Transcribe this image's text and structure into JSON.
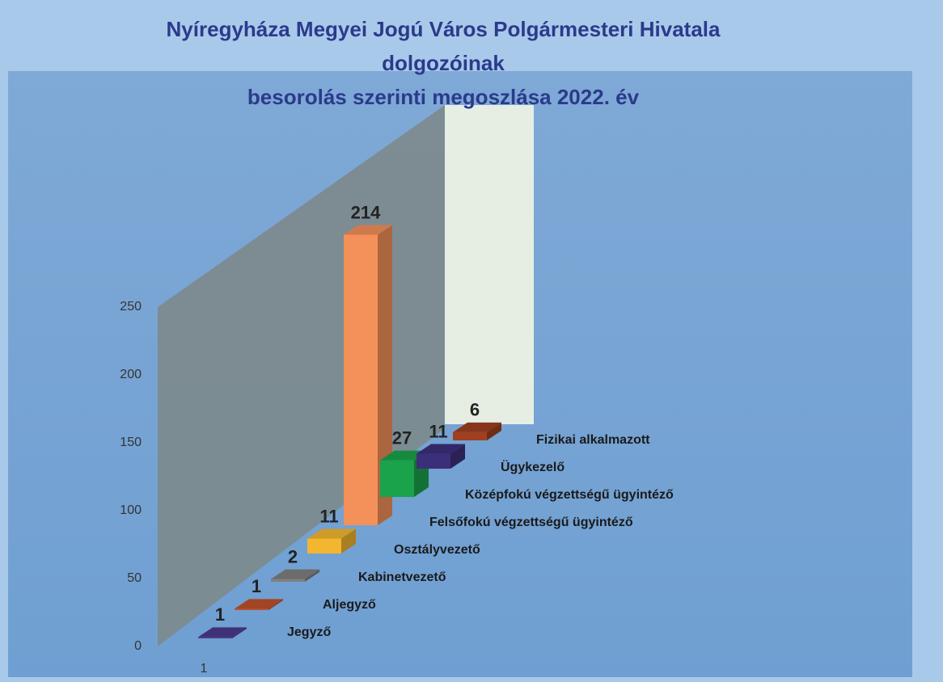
{
  "chart_data": {
    "type": "bar3d",
    "title": [
      "Nyíregyháza Megyei Jogú Város Polgármesteri Hivatala",
      "dolgozóinak",
      "besorolás szerinti megoszlása 2022. év"
    ],
    "categories": [
      "Jegyző",
      "Aljegyző",
      "Kabinetvezető",
      "Osztályvezető",
      "Felsőfokú végzettségű ügyintéző",
      "Középfokú végzettségű ügyintéző",
      "Ügykezelő",
      "Fizikai alkalmazott"
    ],
    "values": [
      1,
      1,
      2,
      11,
      214,
      27,
      11,
      6
    ],
    "colors": [
      "#4b3a8c",
      "#c0502a",
      "#7f7f7f",
      "#f2b630",
      "#f4905a",
      "#1aa34a",
      "#3c2f7a",
      "#a04020"
    ],
    "ylim": [
      0,
      250
    ],
    "yticks": [
      0,
      50,
      100,
      150,
      200,
      250
    ],
    "xlabel": "1"
  }
}
